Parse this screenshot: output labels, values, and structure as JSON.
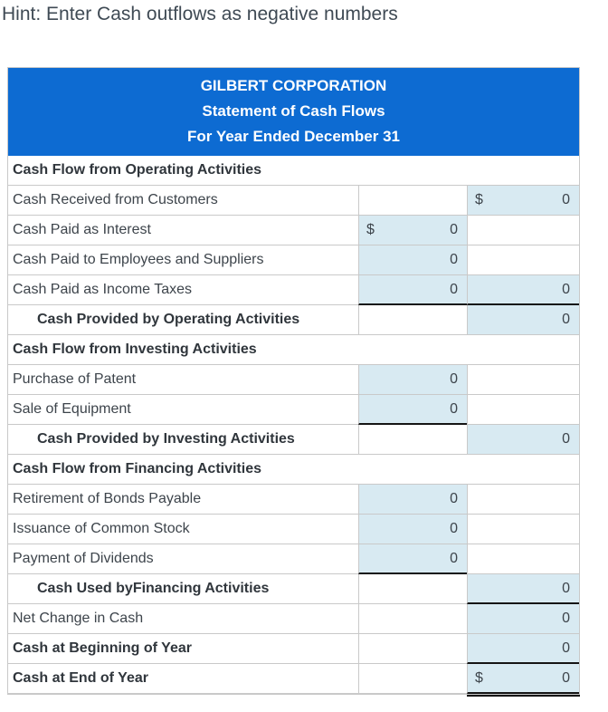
{
  "hint": "Hint: Enter Cash outflows as negative numbers",
  "colors": {
    "header_background": "#0d6bd2",
    "header_text": "#ffffff",
    "input_cell_background": "#d8eaf2",
    "grid_border": "#c9c9c9",
    "rule_line": "#151515",
    "body_text": "#3d444b"
  },
  "statement": {
    "title_lines": [
      "GILBERT CORPORATION",
      "Statement of Cash Flows",
      "For Year Ended December 31"
    ],
    "rows": [
      {
        "type": "section",
        "label": "Cash Flow from Operating Activities"
      },
      {
        "type": "item",
        "label": "Cash Received from Customers",
        "mid": {
          "kind": "blank"
        },
        "right": {
          "kind": "input",
          "dollar": "$",
          "value": "0"
        }
      },
      {
        "type": "item",
        "label": "Cash Paid as Interest",
        "mid": {
          "kind": "input",
          "dollar": "$",
          "value": "0"
        },
        "right": {
          "kind": "blank"
        }
      },
      {
        "type": "item",
        "label": "Cash Paid to Employees and Suppliers",
        "mid": {
          "kind": "input",
          "value": "0"
        },
        "right": {
          "kind": "blank"
        }
      },
      {
        "type": "item",
        "label": "Cash Paid as Income Taxes",
        "mid": {
          "kind": "input",
          "value": "0",
          "black_bottom": true
        },
        "right": {
          "kind": "input",
          "value": "0",
          "black_bottom": true
        }
      },
      {
        "type": "subtotal",
        "label": "Cash Provided by Operating Activities",
        "mid": {
          "kind": "blank"
        },
        "right": {
          "kind": "input",
          "value": "0"
        }
      },
      {
        "type": "section",
        "label": "Cash Flow from Investing Activities"
      },
      {
        "type": "item",
        "label": "Purchase of Patent",
        "mid": {
          "kind": "input",
          "value": "0"
        },
        "right": {
          "kind": "blank"
        }
      },
      {
        "type": "item",
        "label": "Sale of Equipment",
        "mid": {
          "kind": "input",
          "value": "0",
          "black_bottom": true
        },
        "right": {
          "kind": "blank"
        }
      },
      {
        "type": "subtotal",
        "label": "Cash Provided by Investing Activities",
        "mid": {
          "kind": "blank"
        },
        "right": {
          "kind": "input",
          "value": "0"
        }
      },
      {
        "type": "section",
        "label": "Cash Flow from Financing Activities"
      },
      {
        "type": "item",
        "label": "Retirement of Bonds Payable",
        "mid": {
          "kind": "input",
          "value": "0"
        },
        "right": {
          "kind": "blank"
        }
      },
      {
        "type": "item",
        "label": "Issuance of Common Stock",
        "mid": {
          "kind": "input",
          "value": "0"
        },
        "right": {
          "kind": "blank"
        }
      },
      {
        "type": "item",
        "label": "Payment of Dividends",
        "mid": {
          "kind": "input",
          "value": "0",
          "black_bottom": true
        },
        "right": {
          "kind": "blank"
        }
      },
      {
        "type": "subtotal",
        "label": "Cash Used byFinancing Activities",
        "mid": {
          "kind": "blank"
        },
        "right": {
          "kind": "input",
          "value": "0",
          "black_bottom": true
        }
      },
      {
        "type": "item",
        "label": "Net Change in Cash",
        "mid": {
          "kind": "blank"
        },
        "right": {
          "kind": "input",
          "value": "0"
        }
      },
      {
        "type": "bold-item",
        "label": "Cash at Beginning of Year",
        "mid": {
          "kind": "blank"
        },
        "right": {
          "kind": "input",
          "value": "0",
          "black_bottom": true
        }
      },
      {
        "type": "bold-item",
        "label": "Cash at End of Year",
        "mid": {
          "kind": "blank"
        },
        "right": {
          "kind": "input",
          "dollar": "$",
          "value": "0",
          "double_bottom": true
        }
      }
    ]
  }
}
